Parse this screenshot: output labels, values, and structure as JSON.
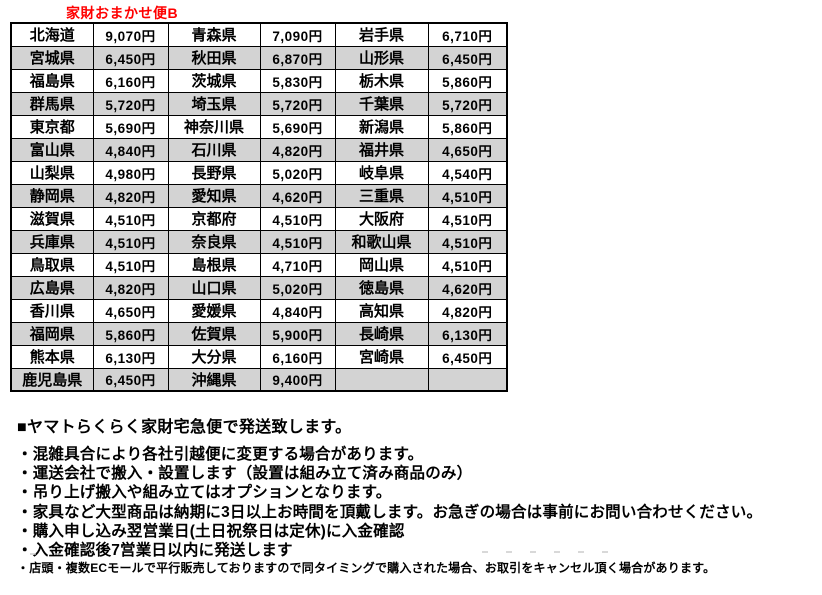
{
  "title": "家財おまかせ便B",
  "colors": {
    "title_red": "#ff0000",
    "row_alt_gray": "#d3d3d3",
    "border_black": "#000000"
  },
  "table": {
    "columns": [
      "prefecture",
      "price",
      "prefecture",
      "price",
      "prefecture",
      "price"
    ],
    "rows": [
      [
        "北海道",
        "9,070円",
        "青森県",
        "7,090円",
        "岩手県",
        "6,710円"
      ],
      [
        "宮城県",
        "6,450円",
        "秋田県",
        "6,870円",
        "山形県",
        "6,450円"
      ],
      [
        "福島県",
        "6,160円",
        "茨城県",
        "5,830円",
        "栃木県",
        "5,860円"
      ],
      [
        "群馬県",
        "5,720円",
        "埼玉県",
        "5,720円",
        "千葉県",
        "5,720円"
      ],
      [
        "東京都",
        "5,690円",
        "神奈川県",
        "5,690円",
        "新潟県",
        "5,860円"
      ],
      [
        "富山県",
        "4,840円",
        "石川県",
        "4,820円",
        "福井県",
        "4,650円"
      ],
      [
        "山梨県",
        "4,980円",
        "長野県",
        "5,020円",
        "岐阜県",
        "4,540円"
      ],
      [
        "静岡県",
        "4,820円",
        "愛知県",
        "4,620円",
        "三重県",
        "4,510円"
      ],
      [
        "滋賀県",
        "4,510円",
        "京都府",
        "4,510円",
        "大阪府",
        "4,510円"
      ],
      [
        "兵庫県",
        "4,510円",
        "奈良県",
        "4,510円",
        "和歌山県",
        "4,510円"
      ],
      [
        "鳥取県",
        "4,510円",
        "島根県",
        "4,710円",
        "岡山県",
        "4,510円"
      ],
      [
        "広島県",
        "4,820円",
        "山口県",
        "5,020円",
        "徳島県",
        "4,620円"
      ],
      [
        "香川県",
        "4,650円",
        "愛媛県",
        "4,840円",
        "高知県",
        "4,820円"
      ],
      [
        "福岡県",
        "5,860円",
        "佐賀県",
        "5,900円",
        "長崎県",
        "6,130円"
      ],
      [
        "熊本県",
        "6,130円",
        "大分県",
        "6,160円",
        "宮崎県",
        "6,450円"
      ],
      [
        "鹿児島県",
        "6,450円",
        "沖縄県",
        "9,400円",
        "",
        ""
      ]
    ]
  },
  "notes": {
    "heading": "■ヤマトらくらく家財宅急便で発送致します。",
    "bullets": [
      "・混雑具合により各社引越便に変更する場合があります。",
      "・運送会社で搬入・設置します（設置は組み立て済み商品のみ）",
      "・吊り上げ搬入や組み立てはオプションとなります。",
      "・家具など大型商品は納期に3日以上お時間を頂戴します。お急ぎの場合は事前にお問い合わせください。",
      "・購入申し込み翌営業日(土日祝祭日は定休)に入金確認",
      "・入金確認後7営業日以内に発送します"
    ],
    "footnote": "・店頭・複数ECモールで平行販売しておりますので同タイミングで購入された場合、お取引をキャンセル頂く場合があります。"
  }
}
